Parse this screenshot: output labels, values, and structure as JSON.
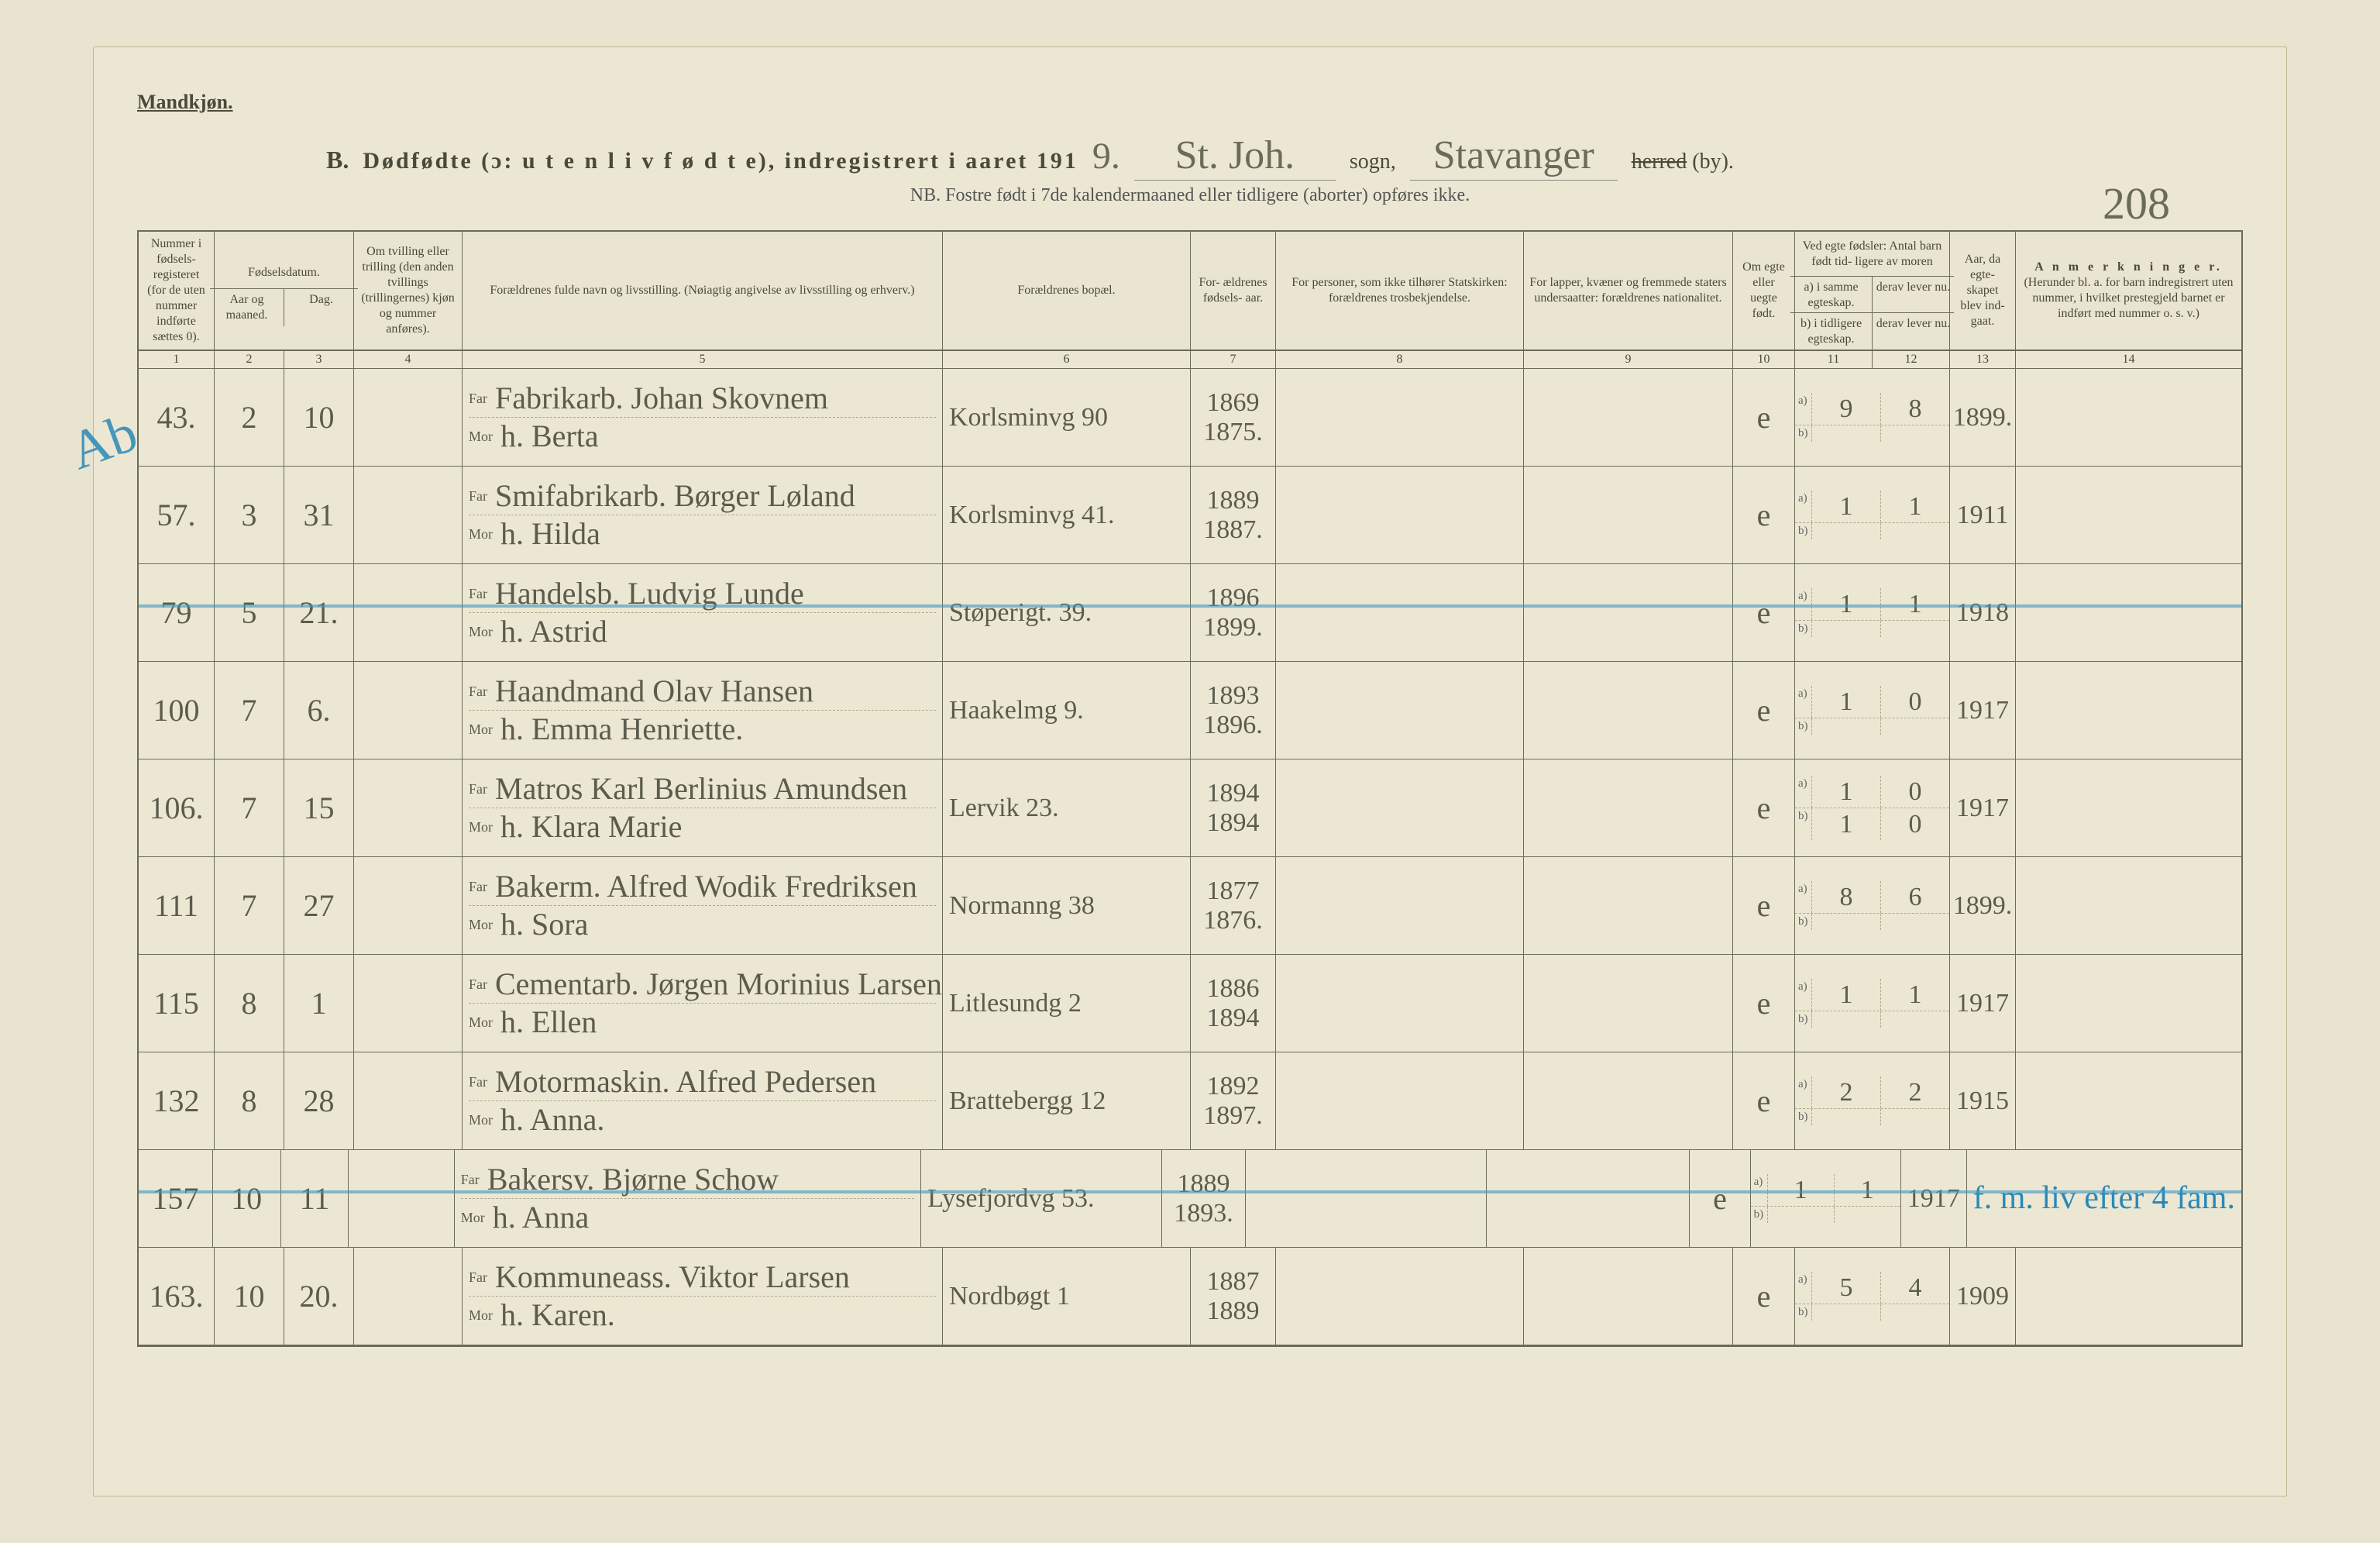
{
  "header": {
    "gender_label": "Mandkjøn.",
    "title_b": "B.",
    "title_main": "Dødfødte (ɔ: u t e n  l i v  f ø d t e), indregistrert i aaret 191",
    "year_suffix": "9.",
    "parish_hand": "St. Joh.",
    "sogn_label": "sogn,",
    "district_hand": "Stavanger",
    "herred_strike": "herred",
    "herred_by": "(by).",
    "nb": "NB. Fostre født i 7de kalendermaaned eller tidligere (aborter) opføres ikke.",
    "page_number": "208"
  },
  "columns": {
    "c1": "Nummer i fødsels- registeret (for de uten nummer indførte sættes 0).",
    "c23_top": "Fødselsdatum.",
    "c2": "Aar og maaned.",
    "c3": "Dag.",
    "c4": "Om tvilling eller trilling (den anden tvillings (trillingernes) kjøn og nummer anføres).",
    "c5": "Forældrenes fulde navn og livsstilling. (Nøiagtig angivelse av livsstilling og erhverv.)",
    "c6": "Forældrenes bopæl.",
    "c7": "For- ældrenes fødsels- aar.",
    "c8": "For personer, som ikke tilhører Statskirken: forældrenes trosbekjendelse.",
    "c9": "For lapper, kvæner og fremmede staters undersaatter: forældrenes nationalitet.",
    "c10": "Om egte eller uegte født.",
    "c11_top": "Ved egte fødsler: Antal barn født tid- ligere av moren",
    "c11a": "a) i samme egteskap.",
    "c11b": "derav lever nu.",
    "c11c": "b) i tidligere egteskap.",
    "c11d": "derav lever nu.",
    "c13": "Aar, da egte- skapet blev ind- gaat.",
    "c14_top": "A n m e r k n i n g e r.",
    "c14_sub": "(Herunder bl. a. for barn indregistrert uten nummer, i hvilket prestegjeld barnet er indført med nummer o. s. v.)",
    "far": "Far",
    "mor": "Mor",
    "nums": [
      "1",
      "2",
      "3",
      "4",
      "5",
      "6",
      "7",
      "8",
      "9",
      "10",
      "11",
      "12",
      "13",
      "14"
    ]
  },
  "blue_marks": {
    "ab_side": "Ab",
    "note_right": "f. m. liv efter 4 fam."
  },
  "rows": [
    {
      "num": "43.",
      "month": "2",
      "day": "10",
      "father": "Fabrikarb. Johan Skovnem",
      "mother": "h. Berta",
      "residence": "Korlsminvg 90",
      "father_year": "1869",
      "mother_year": "1875.",
      "legit": "e",
      "a": "9",
      "a_live": "8",
      "marriage": "1899."
    },
    {
      "num": "57.",
      "month": "3",
      "day": "31",
      "father": "Smifabrikarb. Børger Løland",
      "mother": "h. Hilda",
      "residence": "Korlsminvg 41.",
      "father_year": "1889",
      "mother_year": "1887.",
      "legit": "e",
      "a": "1",
      "a_live": "1",
      "marriage": "1911"
    },
    {
      "num": "79",
      "month": "5",
      "day": "21.",
      "father": "Handelsb. Ludvig Lunde",
      "mother": "h. Astrid",
      "residence": "Støperigt. 39.",
      "father_year": "1896",
      "mother_year": "1899.",
      "legit": "e",
      "a": "1",
      "a_live": "1",
      "marriage": "1918",
      "blue_strike": true
    },
    {
      "num": "100",
      "month": "7",
      "day": "6.",
      "father": "Haandmand Olav Hansen",
      "mother": "h. Emma Henriette.",
      "residence": "Haakelmg 9.",
      "father_year": "1893",
      "mother_year": "1896.",
      "legit": "e",
      "a": "1",
      "a_live": "0",
      "marriage": "1917"
    },
    {
      "num": "106.",
      "month": "7",
      "day": "15",
      "father": "Matros Karl Berlinius Amundsen",
      "mother": "h. Klara Marie",
      "residence": "Lervik 23.",
      "father_year": "1894",
      "mother_year": "1894",
      "legit": "e",
      "a": "1",
      "a_live": "0",
      "b": "1",
      "b_live": "0",
      "marriage": "1917"
    },
    {
      "num": "111",
      "month": "7",
      "day": "27",
      "father": "Bakerm. Alfred Wodik Fredriksen",
      "mother": "h. Sora",
      "residence": "Normanng 38",
      "father_year": "1877",
      "mother_year": "1876.",
      "legit": "e",
      "a": "8",
      "a_live": "6",
      "marriage": "1899."
    },
    {
      "num": "115",
      "month": "8",
      "day": "1",
      "father": "Cementarb. Jørgen Morinius Larsen",
      "mother": "h. Ellen",
      "residence": "Litlesundg 2",
      "father_year": "1886",
      "mother_year": "1894",
      "legit": "e",
      "a": "1",
      "a_live": "1",
      "marriage": "1917"
    },
    {
      "num": "132",
      "month": "8",
      "day": "28",
      "father": "Motormaskin. Alfred Pedersen",
      "mother": "h. Anna.",
      "residence": "Brattebergg 12",
      "father_year": "1892",
      "mother_year": "1897.",
      "legit": "e",
      "a": "2",
      "a_live": "2",
      "marriage": "1915"
    },
    {
      "num": "157",
      "month": "10",
      "day": "11",
      "father": "Bakersv. Bjørne Schow",
      "mother": "h. Anna",
      "residence": "Lysefjordvg 53.",
      "father_year": "1889",
      "mother_year": "1893.",
      "legit": "e",
      "a": "1",
      "a_live": "1",
      "marriage": "1917",
      "blue_strike": true,
      "blue_note": true
    },
    {
      "num": "163.",
      "month": "10",
      "day": "20.",
      "father": "Kommuneass. Viktor Larsen",
      "mother": "h. Karen.",
      "residence": "Nordbøgt 1",
      "father_year": "1887",
      "mother_year": "1889",
      "legit": "e",
      "a": "5",
      "a_live": "4",
      "marriage": "1909"
    }
  ],
  "style": {
    "background": "#e8e4d0",
    "ink": "#5c5c4c",
    "rule": "#6b6b5a",
    "blue": "#2a88b8",
    "handwriting_font": "Brush Script MT",
    "print_font": "Georgia",
    "thead_fontsize": 16,
    "hand_fontsize": 40
  }
}
